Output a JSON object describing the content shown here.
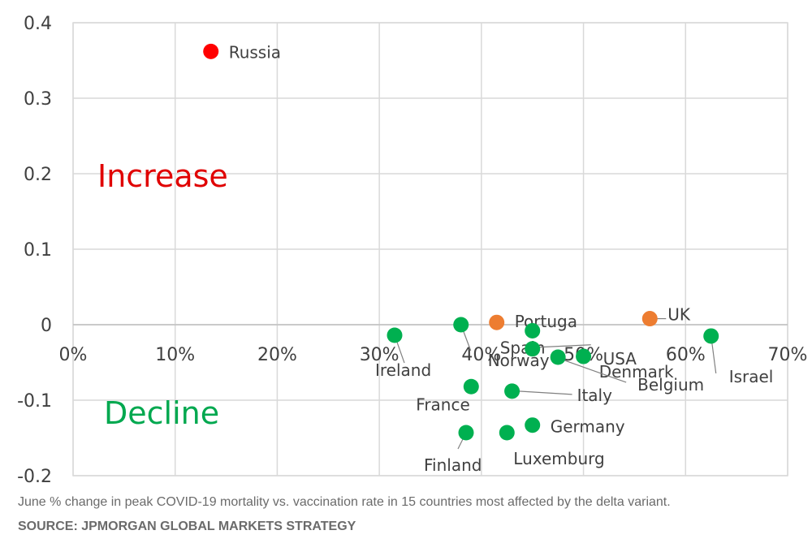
{
  "chart_data": {
    "type": "scatter",
    "xlim": [
      0,
      70
    ],
    "ylim": [
      -0.2,
      0.4
    ],
    "x_ticks": [
      "0%",
      "10%",
      "20%",
      "30%",
      "40%",
      "50%",
      "60%",
      "70%"
    ],
    "y_ticks": [
      "-0.2",
      "-0.1",
      "0",
      "0.1",
      "0.2",
      "0.3",
      "0.4"
    ],
    "grid": true,
    "points": [
      {
        "label": "Russia",
        "x": 13.5,
        "y": 0.362,
        "color": "#ff0000"
      },
      {
        "label": "UK",
        "x": 56.5,
        "y": 0.008,
        "color": "#ed7d31"
      },
      {
        "label": "Portuga",
        "x": 41.5,
        "y": 0.003,
        "color": "#ed7d31"
      },
      {
        "label": "Ireland",
        "x": 31.5,
        "y": -0.014,
        "color": "#00b050"
      },
      {
        "label": "Spain",
        "x": 45.0,
        "y": -0.008,
        "color": "#00b050"
      },
      {
        "label": "Norway",
        "x": 38.0,
        "y": 0.0,
        "color": "#00b050"
      },
      {
        "label": "Denmark",
        "x": 45.0,
        "y": -0.032,
        "color": "#00b050"
      },
      {
        "label": "USA",
        "x": 50.0,
        "y": -0.042,
        "color": "#00b050"
      },
      {
        "label": "Belgium",
        "x": 47.5,
        "y": -0.043,
        "color": "#00b050"
      },
      {
        "label": "Israel",
        "x": 62.5,
        "y": -0.015,
        "color": "#00b050"
      },
      {
        "label": "France",
        "x": 39.0,
        "y": -0.082,
        "color": "#00b050"
      },
      {
        "label": "Italy",
        "x": 43.0,
        "y": -0.088,
        "color": "#00b050"
      },
      {
        "label": "Germany",
        "x": 45.0,
        "y": -0.133,
        "color": "#00b050"
      },
      {
        "label": "Finland",
        "x": 38.5,
        "y": -0.143,
        "color": "#00b050"
      },
      {
        "label": "Luxemburg",
        "x": 42.5,
        "y": -0.143,
        "color": "#00b050"
      }
    ],
    "annotations": [
      {
        "text": "Increase",
        "color": "#e00000"
      },
      {
        "text": "Decline",
        "color": "#00a84f"
      }
    ]
  },
  "caption": "June % change in peak COVID-19 mortality vs. vaccination rate in 15 countries most affected by the delta variant.",
  "source": "SOURCE: JPMORGAN GLOBAL MARKETS STRATEGY"
}
